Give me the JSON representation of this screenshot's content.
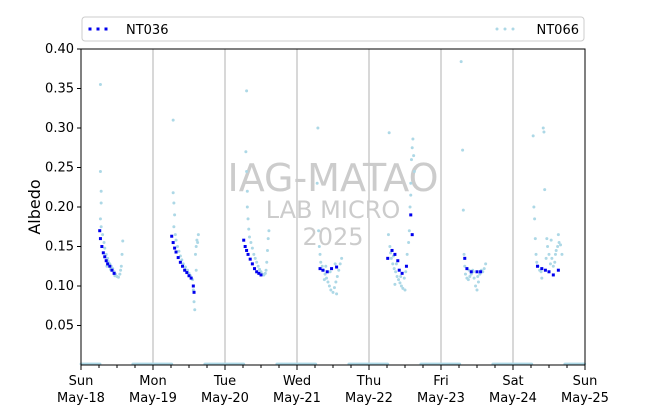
{
  "chart_data": {
    "type": "scatter",
    "ylabel": "Albedo",
    "xlabel": "",
    "title": "",
    "ylim": [
      0.0,
      0.4
    ],
    "yticks": [
      0.05,
      0.1,
      0.15,
      0.2,
      0.25,
      0.3,
      0.35,
      0.4
    ],
    "xlim": [
      0,
      7
    ],
    "xticks": [
      {
        "x": 0,
        "day": "Sun",
        "date": "May-18"
      },
      {
        "x": 1,
        "day": "Mon",
        "date": "May-19"
      },
      {
        "x": 2,
        "day": "Tue",
        "date": "May-20"
      },
      {
        "x": 3,
        "day": "Wed",
        "date": "May-21"
      },
      {
        "x": 4,
        "day": "Thu",
        "date": "May-22"
      },
      {
        "x": 5,
        "day": "Fri",
        "date": "May-23"
      },
      {
        "x": 6,
        "day": "Sat",
        "date": "May-24"
      },
      {
        "x": 7,
        "day": "Sun",
        "date": "May-25"
      }
    ],
    "minor_ticks_per_day": 4,
    "vertical_grid_at_day_boundaries": true,
    "legend_placement": "top, spanning plot width",
    "watermark": {
      "line1": "IAG-MATAO",
      "line2": "LAB MICRO",
      "line3": "2025"
    },
    "series": [
      {
        "name": "NT036",
        "color": "#0000ee",
        "marker": "square",
        "points": [
          [
            0.26,
            0.17
          ],
          [
            0.27,
            0.16
          ],
          [
            0.29,
            0.15
          ],
          [
            0.31,
            0.142
          ],
          [
            0.33,
            0.137
          ],
          [
            0.35,
            0.132
          ],
          [
            0.37,
            0.128
          ],
          [
            0.4,
            0.125
          ],
          [
            0.43,
            0.12
          ],
          [
            0.46,
            0.116
          ],
          [
            1.26,
            0.163
          ],
          [
            1.28,
            0.155
          ],
          [
            1.3,
            0.148
          ],
          [
            1.32,
            0.143
          ],
          [
            1.35,
            0.136
          ],
          [
            1.38,
            0.13
          ],
          [
            1.41,
            0.125
          ],
          [
            1.44,
            0.12
          ],
          [
            1.47,
            0.117
          ],
          [
            1.5,
            0.113
          ],
          [
            1.53,
            0.11
          ],
          [
            1.56,
            0.1
          ],
          [
            1.57,
            0.092
          ],
          [
            2.26,
            0.158
          ],
          [
            2.28,
            0.15
          ],
          [
            2.3,
            0.145
          ],
          [
            2.32,
            0.14
          ],
          [
            2.35,
            0.134
          ],
          [
            2.38,
            0.128
          ],
          [
            2.41,
            0.122
          ],
          [
            2.44,
            0.118
          ],
          [
            2.47,
            0.116
          ],
          [
            2.5,
            0.114
          ],
          [
            3.32,
            0.122
          ],
          [
            3.36,
            0.12
          ],
          [
            3.42,
            0.118
          ],
          [
            3.48,
            0.122
          ],
          [
            3.55,
            0.124
          ],
          [
            4.26,
            0.135
          ],
          [
            4.32,
            0.145
          ],
          [
            4.36,
            0.14
          ],
          [
            4.4,
            0.132
          ],
          [
            4.42,
            0.12
          ],
          [
            4.46,
            0.116
          ],
          [
            4.52,
            0.125
          ],
          [
            4.58,
            0.19
          ],
          [
            4.6,
            0.165
          ],
          [
            5.33,
            0.135
          ],
          [
            5.36,
            0.122
          ],
          [
            5.42,
            0.118
          ],
          [
            5.5,
            0.118
          ],
          [
            5.55,
            0.118
          ],
          [
            6.34,
            0.125
          ],
          [
            6.4,
            0.122
          ],
          [
            6.45,
            0.12
          ],
          [
            6.5,
            0.118
          ],
          [
            6.56,
            0.114
          ],
          [
            6.63,
            0.12
          ]
        ]
      },
      {
        "name": "NT066",
        "color": "#add8e6",
        "marker": "circle",
        "points": [
          [
            0.27,
            0.355
          ],
          [
            0.27,
            0.245
          ],
          [
            0.28,
            0.22
          ],
          [
            0.28,
            0.205
          ],
          [
            0.27,
            0.185
          ],
          [
            0.28,
            0.175
          ],
          [
            0.3,
            0.165
          ],
          [
            0.32,
            0.155
          ],
          [
            0.33,
            0.148
          ],
          [
            0.35,
            0.14
          ],
          [
            0.37,
            0.135
          ],
          [
            0.38,
            0.131
          ],
          [
            0.4,
            0.128
          ],
          [
            0.42,
            0.125
          ],
          [
            0.44,
            0.122
          ],
          [
            0.46,
            0.118
          ],
          [
            0.48,
            0.115
          ],
          [
            0.5,
            0.112
          ],
          [
            0.52,
            0.111
          ],
          [
            0.54,
            0.115
          ],
          [
            0.55,
            0.12
          ],
          [
            0.56,
            0.125
          ],
          [
            0.57,
            0.14
          ],
          [
            0.58,
            0.157
          ],
          [
            0.36,
            0.125
          ],
          [
            0.41,
            0.121
          ],
          [
            0.47,
            0.113
          ],
          [
            1.28,
            0.31
          ],
          [
            1.28,
            0.218
          ],
          [
            1.29,
            0.205
          ],
          [
            1.3,
            0.19
          ],
          [
            1.29,
            0.175
          ],
          [
            1.31,
            0.165
          ],
          [
            1.32,
            0.158
          ],
          [
            1.34,
            0.15
          ],
          [
            1.36,
            0.144
          ],
          [
            1.38,
            0.138
          ],
          [
            1.4,
            0.133
          ],
          [
            1.42,
            0.128
          ],
          [
            1.45,
            0.124
          ],
          [
            1.48,
            0.12
          ],
          [
            1.5,
            0.116
          ],
          [
            1.52,
            0.113
          ],
          [
            1.55,
            0.108
          ],
          [
            1.56,
            0.095
          ],
          [
            1.57,
            0.08
          ],
          [
            1.58,
            0.07
          ],
          [
            1.6,
            0.12
          ],
          [
            1.6,
            0.15
          ],
          [
            1.62,
            0.155
          ],
          [
            1.63,
            0.165
          ],
          [
            1.61,
            0.158
          ],
          [
            1.59,
            0.14
          ],
          [
            2.3,
            0.347
          ],
          [
            2.29,
            0.27
          ],
          [
            2.3,
            0.245
          ],
          [
            2.31,
            0.22
          ],
          [
            2.31,
            0.2
          ],
          [
            2.32,
            0.185
          ],
          [
            2.33,
            0.172
          ],
          [
            2.34,
            0.162
          ],
          [
            2.36,
            0.155
          ],
          [
            2.38,
            0.148
          ],
          [
            2.4,
            0.14
          ],
          [
            2.42,
            0.135
          ],
          [
            2.44,
            0.13
          ],
          [
            2.46,
            0.125
          ],
          [
            2.48,
            0.121
          ],
          [
            2.5,
            0.118
          ],
          [
            2.52,
            0.115
          ],
          [
            2.54,
            0.114
          ],
          [
            2.56,
            0.116
          ],
          [
            2.57,
            0.12
          ],
          [
            2.58,
            0.13
          ],
          [
            2.59,
            0.145
          ],
          [
            2.6,
            0.16
          ],
          [
            2.61,
            0.17
          ],
          [
            3.29,
            0.3
          ],
          [
            3.28,
            0.23
          ],
          [
            3.3,
            0.17
          ],
          [
            3.31,
            0.15
          ],
          [
            3.32,
            0.14
          ],
          [
            3.33,
            0.13
          ],
          [
            3.35,
            0.125
          ],
          [
            3.37,
            0.12
          ],
          [
            3.39,
            0.115
          ],
          [
            3.41,
            0.11
          ],
          [
            3.43,
            0.105
          ],
          [
            3.45,
            0.1
          ],
          [
            3.47,
            0.095
          ],
          [
            3.5,
            0.092
          ],
          [
            3.52,
            0.098
          ],
          [
            3.54,
            0.105
          ],
          [
            3.56,
            0.112
          ],
          [
            3.58,
            0.12
          ],
          [
            3.6,
            0.128
          ],
          [
            3.62,
            0.135
          ],
          [
            3.4,
            0.125
          ],
          [
            3.46,
            0.118
          ],
          [
            3.53,
            0.128
          ],
          [
            3.38,
            0.108
          ],
          [
            3.55,
            0.09
          ],
          [
            4.28,
            0.294
          ],
          [
            4.27,
            0.165
          ],
          [
            4.29,
            0.15
          ],
          [
            4.3,
            0.142
          ],
          [
            4.31,
            0.135
          ],
          [
            4.33,
            0.128
          ],
          [
            4.35,
            0.122
          ],
          [
            4.37,
            0.118
          ],
          [
            4.39,
            0.112
          ],
          [
            4.41,
            0.108
          ],
          [
            4.43,
            0.104
          ],
          [
            4.45,
            0.1
          ],
          [
            4.47,
            0.097
          ],
          [
            4.49,
            0.11
          ],
          [
            4.51,
            0.118
          ],
          [
            4.53,
            0.14
          ],
          [
            4.55,
            0.155
          ],
          [
            4.56,
            0.17
          ],
          [
            4.57,
            0.2
          ],
          [
            4.58,
            0.23
          ],
          [
            4.59,
            0.26
          ],
          [
            4.6,
            0.275
          ],
          [
            4.61,
            0.286
          ],
          [
            4.62,
            0.265
          ],
          [
            4.63,
            0.245
          ],
          [
            4.58,
            0.215
          ],
          [
            4.34,
            0.138
          ],
          [
            4.38,
            0.128
          ],
          [
            4.44,
            0.112
          ],
          [
            4.5,
            0.095
          ],
          [
            4.36,
            0.102
          ],
          [
            5.28,
            0.384
          ],
          [
            5.3,
            0.272
          ],
          [
            5.31,
            0.196
          ],
          [
            5.32,
            0.14
          ],
          [
            5.33,
            0.125
          ],
          [
            5.34,
            0.115
          ],
          [
            5.36,
            0.11
          ],
          [
            5.38,
            0.108
          ],
          [
            5.4,
            0.112
          ],
          [
            5.42,
            0.115
          ],
          [
            5.44,
            0.12
          ],
          [
            5.46,
            0.11
          ],
          [
            5.48,
            0.1
          ],
          [
            5.5,
            0.095
          ],
          [
            5.52,
            0.105
          ],
          [
            5.54,
            0.115
          ],
          [
            5.56,
            0.12
          ],
          [
            5.58,
            0.118
          ],
          [
            5.6,
            0.122
          ],
          [
            5.62,
            0.128
          ],
          [
            5.45,
            0.118
          ],
          [
            5.39,
            0.12
          ],
          [
            5.51,
            0.112
          ],
          [
            6.28,
            0.29
          ],
          [
            6.29,
            0.2
          ],
          [
            6.3,
            0.185
          ],
          [
            6.31,
            0.16
          ],
          [
            6.32,
            0.14
          ],
          [
            6.33,
            0.13
          ],
          [
            6.35,
            0.125
          ],
          [
            6.37,
            0.12
          ],
          [
            6.39,
            0.118
          ],
          [
            6.4,
            0.11
          ],
          [
            6.42,
            0.3
          ],
          [
            6.43,
            0.295
          ],
          [
            6.44,
            0.222
          ],
          [
            6.46,
            0.135
          ],
          [
            6.48,
            0.15
          ],
          [
            6.5,
            0.14
          ],
          [
            6.52,
            0.128
          ],
          [
            6.54,
            0.135
          ],
          [
            6.56,
            0.125
          ],
          [
            6.58,
            0.13
          ],
          [
            6.6,
            0.145
          ],
          [
            6.62,
            0.15
          ],
          [
            6.64,
            0.155
          ],
          [
            6.66,
            0.152
          ],
          [
            6.68,
            0.14
          ],
          [
            6.47,
            0.16
          ],
          [
            6.53,
            0.158
          ],
          [
            6.59,
            0.14
          ],
          [
            6.63,
            0.165
          ]
        ]
      },
      {
        "name": "",
        "color": "#add8e6",
        "marker": "circle",
        "baseline_nighttime": true,
        "intervals": [
          [
            0.0,
            0.27
          ],
          [
            0.72,
            1.27
          ],
          [
            1.72,
            2.27
          ],
          [
            2.72,
            3.27
          ],
          [
            3.72,
            4.27
          ],
          [
            4.72,
            5.27
          ],
          [
            5.72,
            6.27
          ],
          [
            6.72,
            7.0
          ]
        ],
        "value": 0.0
      }
    ]
  }
}
